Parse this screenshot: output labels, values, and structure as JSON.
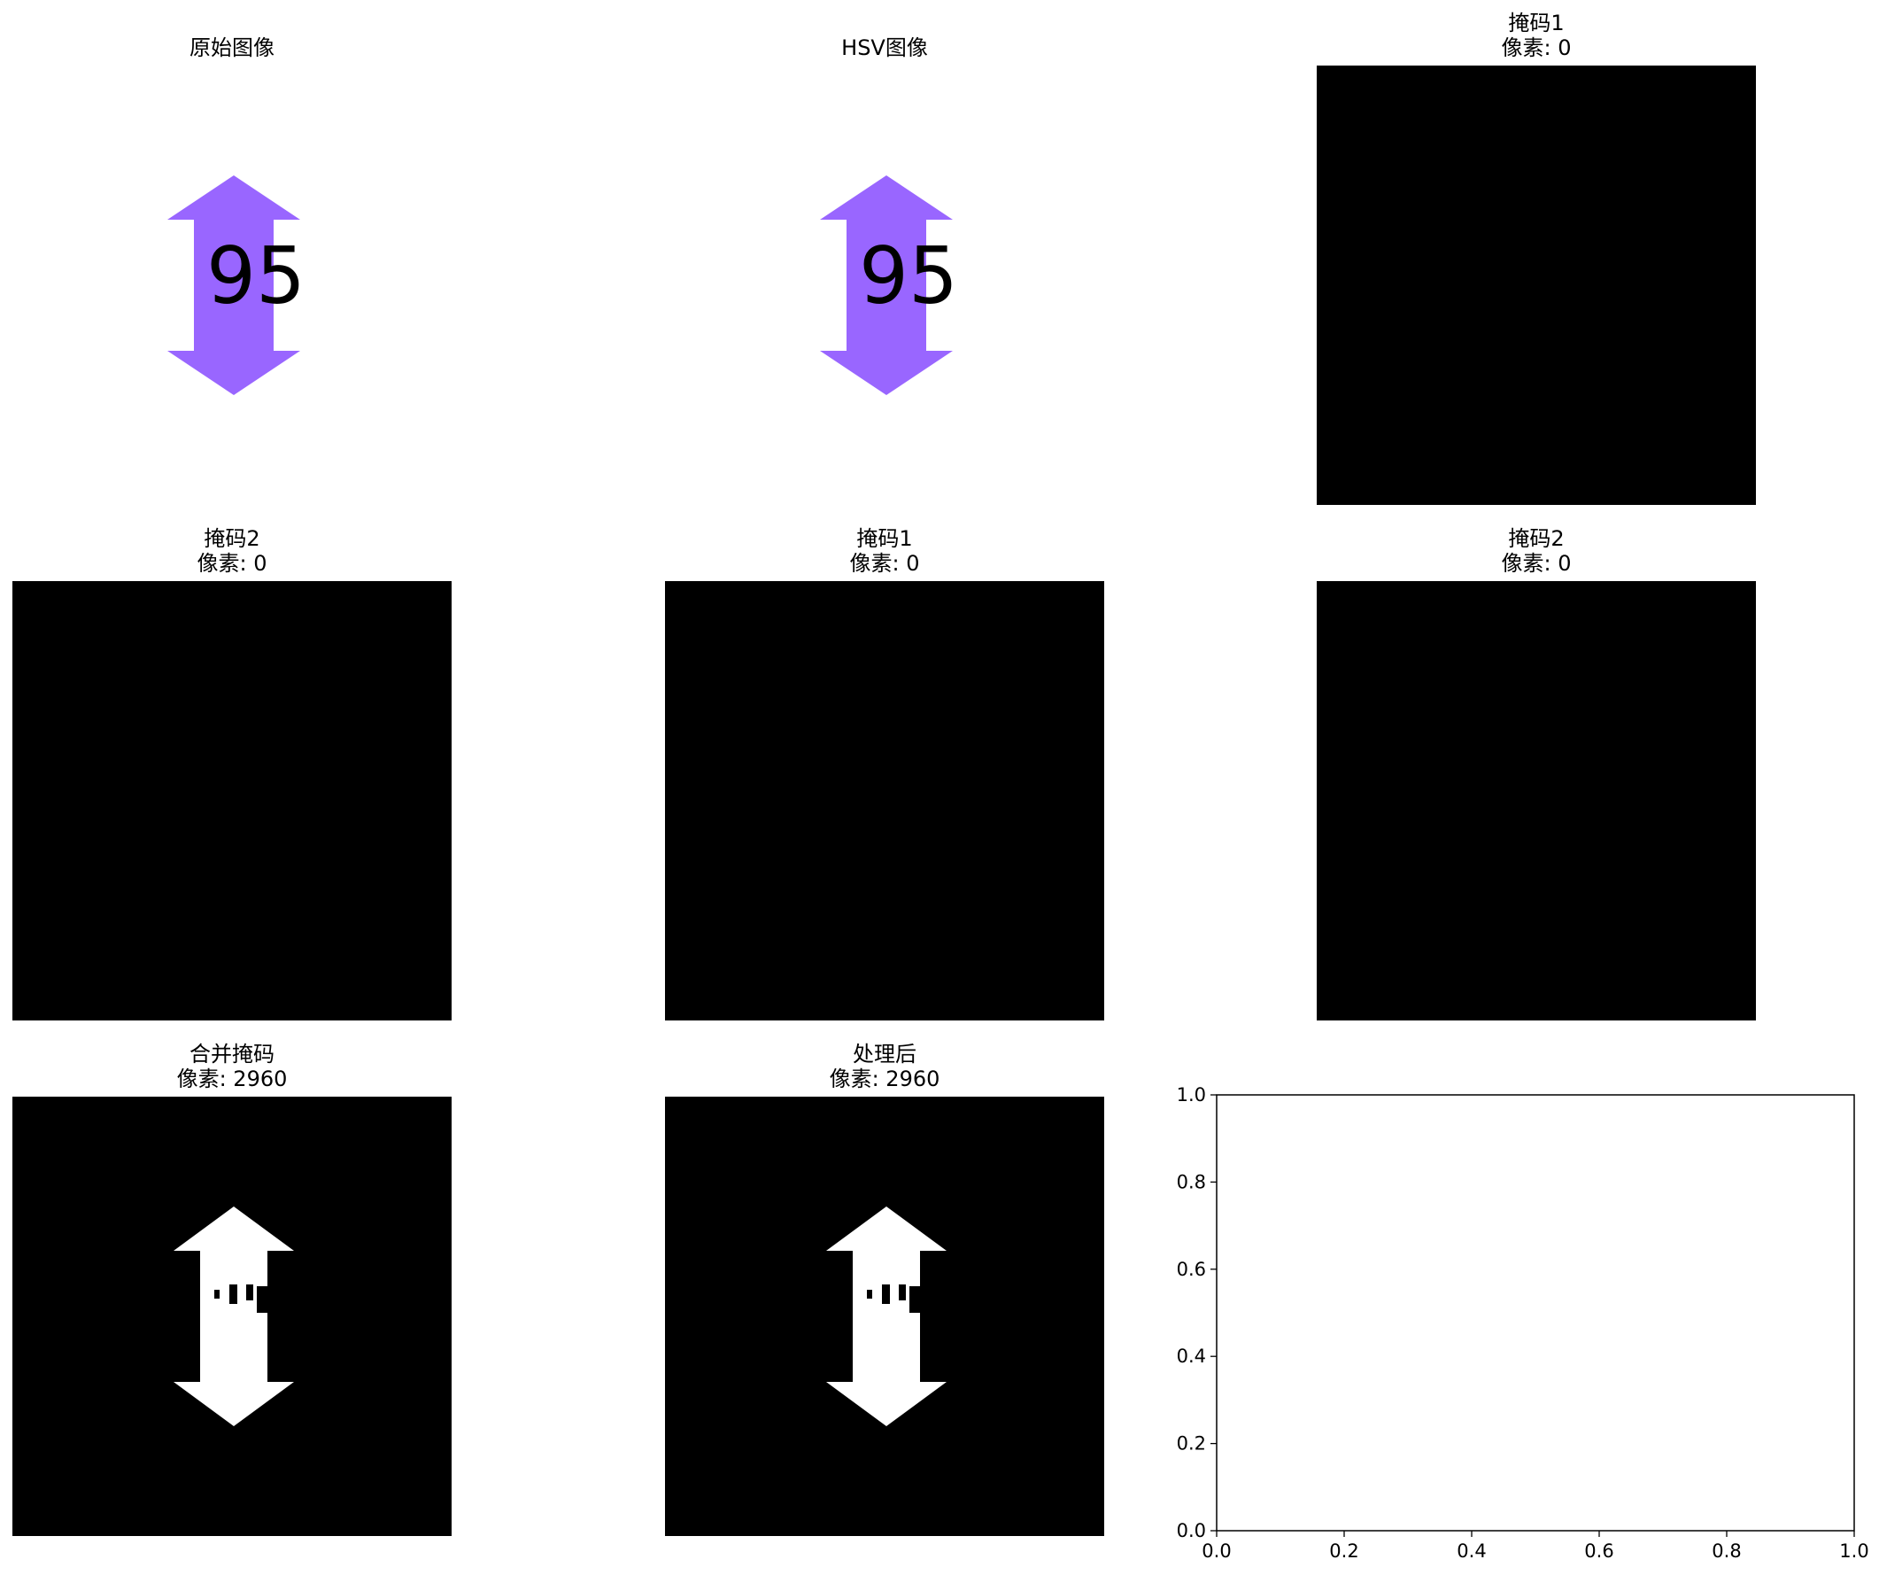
{
  "panels": [
    {
      "title": "原始图像",
      "subtitle": "",
      "kind": "arrow-color"
    },
    {
      "title": "HSV图像",
      "subtitle": "",
      "kind": "arrow-color"
    },
    {
      "title": "掩码1",
      "subtitle": "像素: 0",
      "kind": "empty-mask"
    },
    {
      "title": "掩码2",
      "subtitle": "像素: 0",
      "kind": "empty-mask"
    },
    {
      "title": "掩码1",
      "subtitle": "像素: 0",
      "kind": "empty-mask"
    },
    {
      "title": "掩码2",
      "subtitle": "像素: 0",
      "kind": "empty-mask"
    },
    {
      "title": "合并掩码",
      "subtitle": "像素: 2960",
      "kind": "arrow-mask"
    },
    {
      "title": "处理后",
      "subtitle": "像素: 2960",
      "kind": "arrow-mask"
    },
    {
      "title": "",
      "subtitle": "",
      "kind": "empty-axes"
    }
  ],
  "image_text": {
    "number": "95"
  },
  "colors": {
    "arrow": "#9966ff",
    "mask_bg": "#000000",
    "mask_fg": "#ffffff"
  },
  "chart_data": {
    "type": "scatter",
    "series": [],
    "xlim": [
      0.0,
      1.0
    ],
    "ylim": [
      0.0,
      1.0
    ],
    "xticks": [
      "0.0",
      "0.2",
      "0.4",
      "0.6",
      "0.8",
      "1.0"
    ],
    "yticks": [
      "0.0",
      "0.2",
      "0.4",
      "0.6",
      "0.8",
      "1.0"
    ],
    "grid": false,
    "title": "",
    "xlabel": "",
    "ylabel": ""
  }
}
